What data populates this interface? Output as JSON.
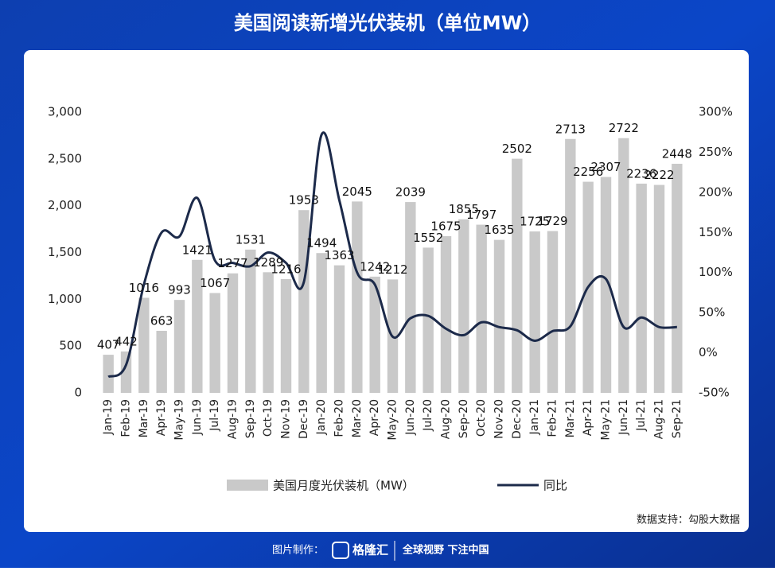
{
  "chart_data": {
    "type": "bar_line",
    "title": "美国阅读新增光伏装机（单位MW）",
    "source": "数据支持：勾股大数据",
    "categories": [
      "Jan-19",
      "Feb-19",
      "Mar-19",
      "Apr-19",
      "May-19",
      "Jun-19",
      "Jul-19",
      "Aug-19",
      "Sep-19",
      "Oct-19",
      "Nov-19",
      "Dec-19",
      "Jan-20",
      "Feb-20",
      "Mar-20",
      "Apr-20",
      "May-20",
      "Jun-20",
      "Jul-20",
      "Aug-20",
      "Sep-20",
      "Oct-20",
      "Nov-20",
      "Dec-20",
      "Jan-21",
      "Feb-21",
      "Mar-21",
      "Apr-21",
      "May-21",
      "Jun-21",
      "Jul-21",
      "Aug-21",
      "Sep-21"
    ],
    "series": [
      {
        "name": "美国月度光伏装机（MW）",
        "type": "bar",
        "color": "#c9c9c9",
        "values": [
          407,
          442,
          1016,
          663,
          993,
          1421,
          1067,
          1277,
          1531,
          1289,
          1216,
          1953,
          1494,
          1363,
          2045,
          1242,
          1212,
          2039,
          1552,
          1675,
          1855,
          1797,
          1635,
          2502,
          1725,
          1729,
          2713,
          2256,
          2307,
          2722,
          2236,
          2222,
          2448
        ]
      },
      {
        "name": "同比",
        "type": "line",
        "axis": "y2",
        "color": "#1c2a4a",
        "values": [
          -30,
          -15,
          85,
          150,
          145,
          193,
          115,
          112,
          108,
          125,
          112,
          88,
          272,
          190,
          100,
          85,
          20,
          43,
          46,
          30,
          22,
          38,
          32,
          28,
          15,
          27,
          33,
          82,
          92,
          32,
          44,
          32,
          32
        ]
      }
    ],
    "ylim": [
      0,
      3000
    ],
    "yticks": [
      0,
      500,
      {
        "value": 1000,
        "label": "1,000"
      },
      {
        "value": 1500,
        "label": "1,500"
      },
      {
        "value": 2000,
        "label": "2,000"
      },
      {
        "value": 2500,
        "label": "2,500"
      },
      {
        "value": 3000,
        "label": "3,000"
      }
    ],
    "y2lim": [
      -50,
      300
    ],
    "y2ticks": [
      {
        "value": -50,
        "label": "-50%"
      },
      {
        "value": 0,
        "label": "0%"
      },
      {
        "value": 50,
        "label": "50%"
      },
      {
        "value": 100,
        "label": "100%"
      },
      {
        "value": 150,
        "label": "150%"
      },
      {
        "value": 200,
        "label": "200%"
      },
      {
        "value": 250,
        "label": "250%"
      },
      {
        "value": 300,
        "label": "300%"
      }
    ]
  },
  "footer": {
    "made_by": "图片制作：",
    "brand": "格隆汇",
    "slogan": "全球视野 下注中国"
  }
}
